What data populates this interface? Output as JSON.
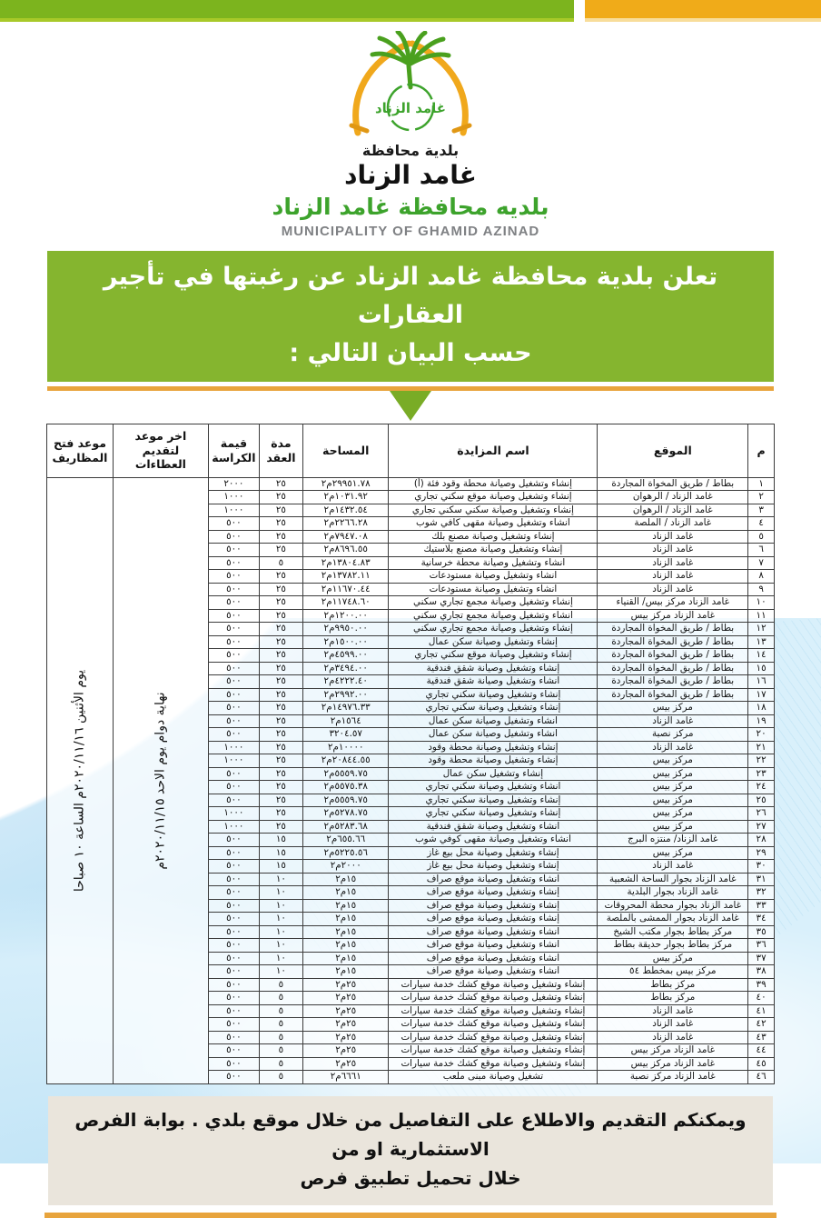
{
  "colors": {
    "band_green": "#7cb41e",
    "band_green_light": "#a8c929",
    "band_orange": "#f0ab19",
    "banner_green": "#85b52f",
    "rule_orange": "#e8a43c",
    "logo_green": "#3da32c",
    "footer_bg": "#eae5dc",
    "wave_blue": "#bfe3f6"
  },
  "header": {
    "emblem_text": "غامد الزناد",
    "logo_line1": "بلدية محافظة",
    "logo_line2": "غامد الزناد",
    "municipality_ar": "بلديه محافظة غامد الزناد",
    "municipality_en": "MUNICIPALITY OF GHAMID  AZINAD"
  },
  "announcement": {
    "line1": "تعلن بلدية محافظة غامد الزناد عن رغبتها في تأجير العقارات",
    "line2": "حسب البيان التالي  :"
  },
  "table": {
    "headers": {
      "index": "م",
      "location": "الموقع",
      "auction": "اسم المزايدة",
      "area": "المساحة",
      "duration": "مدة العقد",
      "fee": "قيمة الكراسة",
      "deadline": "اخر موعد لتقديم العطاءات",
      "opening": "موعد فتح المظاريف"
    },
    "deadline_value": "نهاية دوام يوم الاحد ٢٠٢٠/١١/١٥م",
    "opening_value": "يوم الأثنين ٢٠٢٠/١١/١٦م الساعة ١٠ صباحا",
    "columns_key": [
      "no",
      "location",
      "auction",
      "area",
      "duration",
      "fee"
    ],
    "rows": [
      [
        "١",
        "بطاط / طريق المخواة المجاردة",
        "إنشاء وتشغيل وصيانة محطة وقود فئة (أ)",
        "٢٩٩٥١.٧٨م٢",
        "٢٥",
        "٢٠٠٠"
      ],
      [
        "٢",
        "غامد الزناد / الرهوان",
        "إنشاء وتشغيل  وصيانة موقع  سكني تجاري",
        "١٠٣١.٩٢م٢",
        "٢٥",
        "١٠٠٠"
      ],
      [
        "٣",
        "غامد الزناد / الرهوان",
        "إنشاء وتشغيل وصيانة سكني  سكني تجاري",
        "١٤٣٢.٥٤م٢",
        "٢٥",
        "١٠٠٠"
      ],
      [
        "٤",
        "غامد الزناد / الملصة",
        "انشاء وتشغيل وصيانة مقهى كافي شوب",
        "٢٢٦٦.٢٨م٢",
        "٢٥",
        "٥٠٠"
      ],
      [
        "٥",
        "غامد الزناد",
        "إنشاء وتشغيل  وصيانة  مصنع بلك",
        "٧٩٤٧.٠٨م٢",
        "٢٥",
        "٥٠٠"
      ],
      [
        "٦",
        "غامد الزناد",
        "إنشاء وتشغيل وصيانة مصنع بلاستيك",
        "٨٦٩٦.٥٥م٢",
        "٢٥",
        "٥٠٠"
      ],
      [
        "٧",
        "غامد الزناد",
        "انشاء وتشغيل وصيانة  محطة خرسانية",
        "١٣٨٠٤.٨٣م٢",
        "٥",
        "٥٠٠"
      ],
      [
        "٨",
        "غامد الزناد",
        "انشاء وتشغيل  وصيانة  مستودعات",
        "١٣٧٨٢.١١م٢",
        "٢٥",
        "٥٠٠"
      ],
      [
        "٩",
        "غامد الزناد",
        "انشاء وتشغيل  وصيانة  مستودعات",
        "١١٦٧٠.٤٤م٢",
        "٢٥",
        "٥٠٠"
      ],
      [
        "١٠",
        "غامد الزناد مركز بيس/ القنياء",
        "إنشاء وتشغيل  وصيانة  مجمع تجاري سكني",
        "١١٧٤٨.٦٠م٢",
        "٢٥",
        "٥٠٠"
      ],
      [
        "١١",
        "غامد الزناد مركز بيس",
        "انشاء وتشغيل وصيانة مجمع تجاري سكني",
        "١٢٠٠.٠٠م٢",
        "٢٥",
        "٥٠٠"
      ],
      [
        "١٢",
        "بطاط / طريق المخواة المجاردة",
        "إنشاء وتشغيل  وصيانة  مجمع تجاري سكني",
        "٩٩٥٠.٠٠م٢",
        "٢٥",
        "٥٠٠"
      ],
      [
        "١٣",
        "بطاط / طريق المخواة المجاردة",
        "إنشاء وتشغيل  وصيانة  سكن عمال",
        "١٥٠٠.٠٠م٢",
        "٢٥",
        "٥٠٠"
      ],
      [
        "١٤",
        "بطاط / طريق المخواة المجاردة",
        "إنشاء وتشغيل وصيانة  موقع سكني  تجاري",
        "٤٥٩٩.٠٠م٢",
        "٢٥",
        "٥٠٠"
      ],
      [
        "١٥",
        "بطاط / طريق المخواة المجاردة",
        "إنشاء وتشغيل   وصيانة شقق فندقية",
        "٣٤٩٤.٠٠م٢",
        "٢٥",
        "٥٠٠"
      ],
      [
        "١٦",
        "بطاط / طريق المخواة المجاردة",
        "انشاء وتشغيل وصيانة  شقق فندقية",
        "٤٢٢٢.٤٠م٢",
        "٢٥",
        "٥٠٠"
      ],
      [
        "١٧",
        "بطاط / طريق المخواة المجاردة",
        "إنشاء وتشغيل  وصيانة  سكني تجاري",
        "٢٩٩٢.٠٠م٢",
        "٢٥",
        "٥٠٠"
      ],
      [
        "١٨",
        "مركز بيس",
        "إنشاء وتشغيل  وصيانة  سكني تجاري",
        "١٤٩٧٦.٣٣م٢",
        "٢٥",
        "٥٠٠"
      ],
      [
        "١٩",
        "غامد الزناد",
        "انشاء وتشغيل وصيانة سكن عمال",
        "١٥٦٤م٢",
        "٢٥",
        "٥٠٠"
      ],
      [
        "٢٠",
        "مركز نصبة",
        "انشاء وتشغيل وصيانة  سكن عمال",
        "٣٢٠٤.٥٧",
        "٢٥",
        "٥٠٠"
      ],
      [
        "٢١",
        "غامد الزناد",
        "إنشاء وتشغيل  وصيانة  محطة وقود",
        "١٠٠٠٠م٢",
        "٢٥",
        "١٠٠٠"
      ],
      [
        "٢٢",
        "مركز بيس",
        "إنشاء وتشغيل  وصيانة  محطة وقود",
        "٢٠٨٤٤.٥٥م٢",
        "٢٥",
        "١٠٠٠"
      ],
      [
        "٢٣",
        "مركز بيس",
        "إنشاء وتشغيل  سكن عمال",
        "٥٥٥٩.٧٥م٢",
        "٢٥",
        "٥٠٠"
      ],
      [
        "٢٤",
        "مركز بيس",
        "انشاء وتشغيل   وصيانة سكني تجاري",
        "٥٥٧٥.٣٨م٢",
        "٢٥",
        "٥٠٠"
      ],
      [
        "٢٥",
        "مركز بيس",
        "إنشاء وتشغيل  وصيانة  سكني تجاري",
        "٥٥٥٩.٧٥م٢",
        "٢٥",
        "٥٠٠"
      ],
      [
        "٢٦",
        "مركز بيس",
        "إنشاء وتشغيل  وصيانة  سكني تجاري",
        "٥٢٧٨.٧٥م٢",
        "٢٥",
        "١٠٠٠"
      ],
      [
        "٢٧",
        "مركز بيس",
        "انشاء وتشغيل  وصيانة  شقق فندقية",
        "٥٢٨٣.٦٨م٢",
        "٢٥",
        "١٠٠٠"
      ],
      [
        "٢٨",
        "غامد الزناد/ منتزه البرج",
        "انشاء وتشغيل وصيانة  مقهى كوفي شوب",
        "٦٥٥.٦٦م٢",
        "١٥",
        "٥٠٠"
      ],
      [
        "٢٩",
        "مركز بيس",
        "إنشاء وتشغيل  وصيانة  محل بيع غاز",
        "٥٢٢٥.٥٦م٢",
        "١٥",
        "٥٠٠"
      ],
      [
        "٣٠",
        "غامد الزناد",
        "إنشاء وتشغيل  وصيانة محل بيع غاز",
        "٢٠٠٠م٢",
        "١٥",
        "٥٠٠"
      ],
      [
        "٣١",
        "غامد الزناد بجوار الساحة الشعبية",
        "انشاء وتشغيل  وصيانة  موقع صراف",
        "١٥م٢",
        "١٠",
        "٥٠٠"
      ],
      [
        "٣٢",
        "غامد الزناد بجوار البلدية",
        "إنشاء وتشغيل  وصيانة  موقع صراف",
        "١٥م٢",
        "١٠",
        "٥٠٠"
      ],
      [
        "٣٣",
        "غامد الزناد بجوار محطة المحروقات",
        "إنشاء وتشغيل وصيانة موقع صراف",
        "١٥م٢",
        "١٠",
        "٥٠٠"
      ],
      [
        "٣٤",
        "غامد الزناد بجوار الممشى بالملصة",
        "إنشاء وتشغيل   وصيانة  موقع صراف",
        "١٥م٢",
        "١٠",
        "٥٠٠"
      ],
      [
        "٣٥",
        "مركز بطاط بجوار مكتب الشيخ",
        "انشاء وتشغيل  وصيانة   موقع صراف",
        "١٥م٢",
        "١٠",
        "٥٠٠"
      ],
      [
        "٣٦",
        "مركز بطاط بجوار حديقة بطاط",
        "انشاء وتشغيل  وصيانة  موقع صراف",
        "١٥م٢",
        "١٠",
        "٥٠٠"
      ],
      [
        "٣٧",
        "مركز بيس",
        "انشاء وتشغيل  وصيانة  موقع صراف",
        "١٥م٢",
        "١٠",
        "٥٠٠"
      ],
      [
        "٣٨",
        "مركز بيس بمخطط ٥٤",
        "انشاء وتشغيل  وصيانة  موقع صراف",
        "١٥م٢",
        "١٠",
        "٥٠٠"
      ],
      [
        "٣٩",
        "مركز بطاط",
        "إنشاء وتشغيل  وصيانة موقع كشك خدمة سيارات",
        "٢٥م٢",
        "٥",
        "٥٠٠"
      ],
      [
        "٤٠",
        "مركز بطاط",
        "إنشاء وتشغيل  وصيانة  موقع كشك خدمة سيارات",
        "٢٥م٢",
        "٥",
        "٥٠٠"
      ],
      [
        "٤١",
        "غامد الزناد",
        "إنشاء وتشغيل  وصيانة  موقع كشك خدمة سيارات",
        "٢٥م٢",
        "٥",
        "٥٠٠"
      ],
      [
        "٤٢",
        "غامد الزناد",
        "إنشاء وتشغيل  وصيانة  موقع كشك خدمة سيارات",
        "٢٥م٢",
        "٥",
        "٥٠٠"
      ],
      [
        "٤٣",
        "غامد الزناد",
        "إنشاء وتشغيل  وصيانة  موقع كشك خدمة سيارات",
        "٢٥م٢",
        "٥",
        "٥٠٠"
      ],
      [
        "٤٤",
        "غامد الزناد مركز بيس",
        "إنشاء وتشغيل  وصيانة  موقع كشك خدمة سيارات",
        "٢٥م٢",
        "٥",
        "٥٠٠"
      ],
      [
        "٤٥",
        "غامد الزناد مركز بيس",
        "إنشاء وتشغيل  وصيانة  موقع كشك خدمة سيارات",
        "٢٥م٢",
        "٥",
        "٥٠٠"
      ],
      [
        "٤٦",
        "غامد الزناد مركز نصبة",
        "تشغيل وصيانة  مبنى ملعب",
        "٦٦٦١م٢",
        "٥",
        "٥٠٠"
      ]
    ]
  },
  "footer": {
    "line1": "ويمكنكم التقديم والاطلاع على التفاصيل من خلال موقع بلدي . بوابة الفرص الاستثمارية او من",
    "line2": "خلال تحميل تطبيق فرص"
  }
}
